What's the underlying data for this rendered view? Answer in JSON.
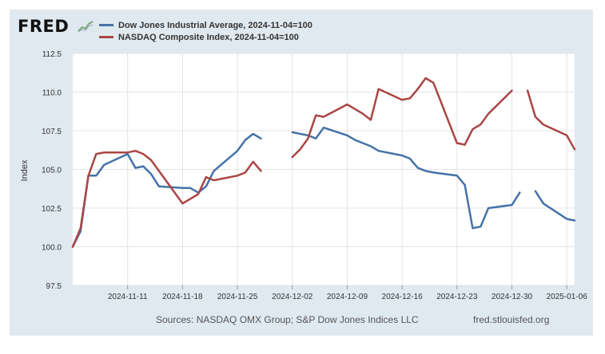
{
  "brand": {
    "logo_text": "FRED",
    "logo_icon": "trend-line-icon"
  },
  "colors": {
    "dow": "#4572a7",
    "nasdaq": "#aa4643",
    "background": "#e1e9f0",
    "plot": "#ffffff",
    "grid": "#e4e4e4"
  },
  "footer": {
    "sources": "Sources: NASDAQ OMX Group; S&P Dow Jones Indices LLC",
    "site": "fred.stlouisfed.org"
  },
  "chart_data": {
    "type": "line",
    "title": "",
    "ylabel": "Index",
    "xlabel": "",
    "ylim": [
      97.5,
      112.5
    ],
    "yticks": [
      "97.5",
      "100.0",
      "102.5",
      "105.0",
      "107.5",
      "110.0",
      "112.5"
    ],
    "xlim": [
      "2024-11-04",
      "2025-01-07"
    ],
    "xticks": [
      "2024-11-11",
      "2024-11-18",
      "2024-11-25",
      "2024-12-02",
      "2024-12-09",
      "2024-12-16",
      "2024-12-23",
      "2024-12-30",
      "2025-01-06"
    ],
    "grid": true,
    "legend_position": "top-left",
    "series": [
      {
        "name": "Dow Jones Industrial Average, 2024-11-04=100",
        "color": "#4572a7",
        "points": [
          [
            "2024-11-04",
            100.0
          ],
          [
            "2024-11-05",
            101.0
          ],
          [
            "2024-11-06",
            104.6
          ],
          [
            "2024-11-07",
            104.6
          ],
          [
            "2024-11-08",
            105.3
          ],
          [
            "2024-11-11",
            106.0
          ],
          [
            "2024-11-12",
            105.1
          ],
          [
            "2024-11-13",
            105.2
          ],
          [
            "2024-11-14",
            104.7
          ],
          [
            "2024-11-15",
            103.9
          ],
          [
            "2024-11-18",
            103.8
          ],
          [
            "2024-11-19",
            103.8
          ],
          [
            "2024-11-20",
            103.5
          ],
          [
            "2024-11-21",
            103.9
          ],
          [
            "2024-11-22",
            104.9
          ],
          [
            "2024-11-25",
            106.2
          ],
          [
            "2024-11-26",
            106.9
          ],
          [
            "2024-11-27",
            107.3
          ],
          [
            "2024-11-28",
            107.0
          ],
          [
            "2024-11-29",
            null
          ],
          [
            "2024-12-02",
            107.4
          ],
          [
            "2024-12-03",
            107.3
          ],
          [
            "2024-12-04",
            107.2
          ],
          [
            "2024-12-05",
            107.0
          ],
          [
            "2024-12-06",
            107.7
          ],
          [
            "2024-12-09",
            107.2
          ],
          [
            "2024-12-10",
            106.9
          ],
          [
            "2024-12-11",
            106.7
          ],
          [
            "2024-12-12",
            106.5
          ],
          [
            "2024-12-13",
            106.2
          ],
          [
            "2024-12-16",
            105.9
          ],
          [
            "2024-12-17",
            105.7
          ],
          [
            "2024-12-18",
            105.1
          ],
          [
            "2024-12-19",
            104.9
          ],
          [
            "2024-12-20",
            104.8
          ],
          [
            "2024-12-23",
            104.6
          ],
          [
            "2024-12-24",
            104.0
          ],
          [
            "2024-12-25",
            101.2
          ],
          [
            "2024-12-26",
            101.3
          ],
          [
            "2024-12-27",
            102.5
          ],
          [
            "2024-12-30",
            102.7
          ],
          [
            "2024-12-31",
            103.5
          ],
          [
            "2025-01-01",
            null
          ],
          [
            "2025-01-02",
            103.6
          ],
          [
            "2025-01-03",
            102.8
          ],
          [
            "2025-01-06",
            101.8
          ],
          [
            "2025-01-07",
            101.7
          ]
        ]
      },
      {
        "name": "NASDAQ Composite Index, 2024-11-04=100",
        "color": "#aa4643",
        "points": [
          [
            "2024-11-04",
            100.0
          ],
          [
            "2024-11-05",
            101.2
          ],
          [
            "2024-11-06",
            104.6
          ],
          [
            "2024-11-07",
            106.0
          ],
          [
            "2024-11-08",
            106.1
          ],
          [
            "2024-11-11",
            106.1
          ],
          [
            "2024-11-12",
            106.2
          ],
          [
            "2024-11-13",
            106.0
          ],
          [
            "2024-11-14",
            105.6
          ],
          [
            "2024-11-15",
            104.9
          ],
          [
            "2024-11-18",
            102.8
          ],
          [
            "2024-11-19",
            103.1
          ],
          [
            "2024-11-20",
            103.4
          ],
          [
            "2024-11-21",
            104.5
          ],
          [
            "2024-11-22",
            104.3
          ],
          [
            "2024-11-25",
            104.6
          ],
          [
            "2024-11-26",
            104.8
          ],
          [
            "2024-11-27",
            105.5
          ],
          [
            "2024-11-28",
            104.9
          ],
          [
            "2024-11-29",
            null
          ],
          [
            "2024-12-02",
            105.8
          ],
          [
            "2024-12-03",
            106.3
          ],
          [
            "2024-12-04",
            107.0
          ],
          [
            "2024-12-05",
            108.5
          ],
          [
            "2024-12-06",
            108.4
          ],
          [
            "2024-12-09",
            109.2
          ],
          [
            "2024-12-10",
            108.9
          ],
          [
            "2024-12-11",
            108.6
          ],
          [
            "2024-12-12",
            108.2
          ],
          [
            "2024-12-13",
            110.2
          ],
          [
            "2024-12-16",
            109.5
          ],
          [
            "2024-12-17",
            109.6
          ],
          [
            "2024-12-18",
            110.2
          ],
          [
            "2024-12-19",
            110.9
          ],
          [
            "2024-12-20",
            110.6
          ],
          [
            "2024-12-23",
            106.7
          ],
          [
            "2024-12-24",
            106.6
          ],
          [
            "2024-12-25",
            107.6
          ],
          [
            "2024-12-26",
            107.9
          ],
          [
            "2024-12-27",
            108.6
          ],
          [
            "2024-12-30",
            110.1
          ],
          [
            "2024-12-31",
            null
          ],
          [
            "2025-01-01",
            110.1
          ],
          [
            "2025-01-02",
            108.4
          ],
          [
            "2025-01-03",
            107.9
          ],
          [
            "2025-01-06",
            107.2
          ],
          [
            "2025-01-07",
            106.3
          ]
        ]
      }
    ]
  }
}
